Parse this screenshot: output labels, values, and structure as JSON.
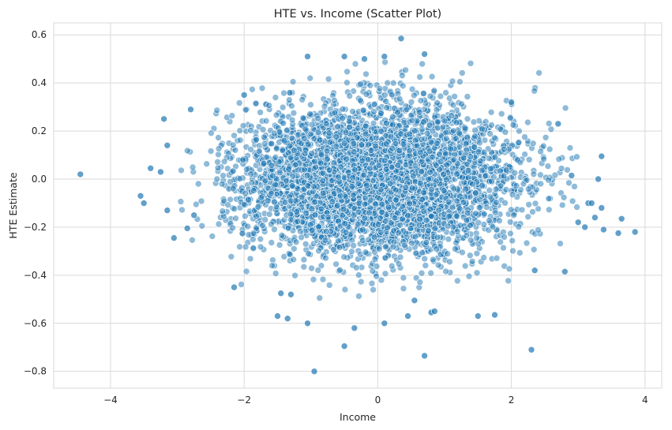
{
  "chart_data": {
    "type": "scatter",
    "title": "HTE vs. Income (Scatter Plot)",
    "xlabel": "Income",
    "ylabel": "HTE Estimate",
    "xlim": [
      -4.85,
      4.25
    ],
    "ylim": [
      -0.87,
      0.65
    ],
    "xticks": [
      -4,
      -2,
      0,
      2,
      4
    ],
    "yticks": [
      -0.8,
      -0.6,
      -0.4,
      -0.2,
      0.0,
      0.2,
      0.4,
      0.6
    ],
    "xtick_labels": [
      "−4",
      "−2",
      "0",
      "2",
      "4"
    ],
    "ytick_labels": [
      "−0.8",
      "−0.6",
      "−0.4",
      "−0.2",
      "0.0",
      "0.2",
      "0.4",
      "0.6"
    ],
    "grid": true,
    "marker_color": "#1f77b4",
    "marker_alpha": 0.5,
    "n_cloud_points": 5000,
    "cloud_model": {
      "x_mean": 0.0,
      "x_std": 1.0,
      "y_mean": 0.0,
      "y_std": 0.155,
      "y_std_shrink_with_abs_x": 0.12
    },
    "outliers": [
      {
        "x": -4.45,
        "y": 0.02
      },
      {
        "x": -3.55,
        "y": -0.07
      },
      {
        "x": -3.5,
        "y": -0.1
      },
      {
        "x": -3.4,
        "y": 0.045
      },
      {
        "x": -3.25,
        "y": 0.03
      },
      {
        "x": -3.2,
        "y": 0.25
      },
      {
        "x": -3.15,
        "y": 0.14
      },
      {
        "x": -3.15,
        "y": -0.13
      },
      {
        "x": -3.05,
        "y": -0.245
      },
      {
        "x": -2.85,
        "y": -0.205
      },
      {
        "x": -2.8,
        "y": 0.29
      },
      {
        "x": -2.75,
        "y": -0.15
      },
      {
        "x": -2.15,
        "y": -0.45
      },
      {
        "x": -2.0,
        "y": 0.35
      },
      {
        "x": -1.5,
        "y": -0.57
      },
      {
        "x": -1.45,
        "y": -0.475
      },
      {
        "x": -1.35,
        "y": -0.58
      },
      {
        "x": -1.3,
        "y": -0.48
      },
      {
        "x": -1.05,
        "y": 0.51
      },
      {
        "x": -1.05,
        "y": -0.6
      },
      {
        "x": -0.95,
        "y": -0.8
      },
      {
        "x": -0.5,
        "y": 0.51
      },
      {
        "x": -0.5,
        "y": -0.695
      },
      {
        "x": -0.35,
        "y": -0.62
      },
      {
        "x": -0.2,
        "y": 0.5
      },
      {
        "x": 0.1,
        "y": -0.6
      },
      {
        "x": 0.1,
        "y": 0.51
      },
      {
        "x": 0.35,
        "y": 0.585
      },
      {
        "x": 0.45,
        "y": -0.57
      },
      {
        "x": 0.55,
        "y": -0.505
      },
      {
        "x": 0.7,
        "y": 0.52
      },
      {
        "x": 0.7,
        "y": -0.735
      },
      {
        "x": 0.8,
        "y": -0.555
      },
      {
        "x": 0.85,
        "y": -0.55
      },
      {
        "x": 1.5,
        "y": -0.57
      },
      {
        "x": 1.75,
        "y": -0.565
      },
      {
        "x": 2.0,
        "y": 0.32
      },
      {
        "x": 2.3,
        "y": -0.71
      },
      {
        "x": 2.35,
        "y": -0.38
      },
      {
        "x": 2.7,
        "y": 0.23
      },
      {
        "x": 2.8,
        "y": -0.385
      },
      {
        "x": 2.9,
        "y": 0.015
      },
      {
        "x": 3.0,
        "y": -0.18
      },
      {
        "x": 3.1,
        "y": -0.2
      },
      {
        "x": 3.15,
        "y": -0.1
      },
      {
        "x": 3.2,
        "y": -0.1
      },
      {
        "x": 3.25,
        "y": -0.16
      },
      {
        "x": 3.35,
        "y": -0.12
      },
      {
        "x": 3.35,
        "y": 0.095
      },
      {
        "x": 3.38,
        "y": -0.21
      },
      {
        "x": 3.3,
        "y": 0.0
      },
      {
        "x": 3.6,
        "y": -0.225
      },
      {
        "x": 3.65,
        "y": -0.165
      },
      {
        "x": 3.85,
        "y": -0.22
      }
    ]
  }
}
